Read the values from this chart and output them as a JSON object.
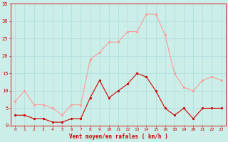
{
  "hours_labels": [
    "0",
    "1",
    "2",
    "3",
    "4",
    "5",
    "6",
    "7",
    "8",
    "9",
    "10",
    "11",
    "12",
    "13",
    "14",
    "15",
    "16",
    "18",
    "19",
    "20",
    "21",
    "22",
    "23"
  ],
  "avg_wind": [
    3,
    3,
    2,
    2,
    1,
    1,
    2,
    2,
    8,
    13,
    8,
    10,
    12,
    15,
    14,
    10,
    5,
    3,
    5,
    2,
    5,
    5,
    5
  ],
  "gust_wind": [
    7,
    10,
    6,
    6,
    5,
    3,
    6,
    6,
    19,
    21,
    24,
    24,
    27,
    27,
    32,
    32,
    26,
    15,
    11,
    10,
    13,
    14,
    13
  ],
  "avg_color": "#cc0000",
  "gust_color": "#ff9999",
  "bg_color": "#cceee8",
  "grid_color": "#aadddd",
  "xlabel": "Vent moyen/en rafales ( km/h )",
  "xlabel_color": "#cc0000",
  "tick_color": "#cc0000",
  "ylim": [
    0,
    35
  ],
  "yticks": [
    0,
    5,
    10,
    15,
    20,
    25,
    30,
    35
  ],
  "ytick_labels": [
    "0",
    "5",
    "10",
    "15",
    "20",
    "25",
    "30",
    "35"
  ]
}
